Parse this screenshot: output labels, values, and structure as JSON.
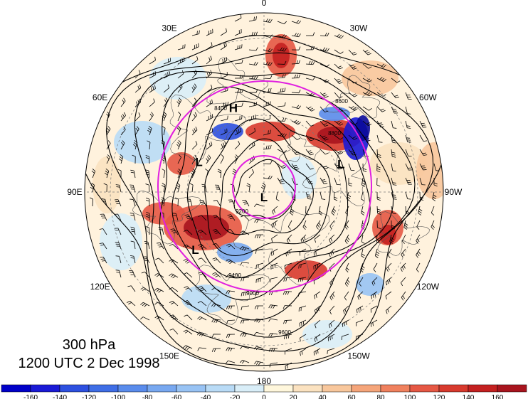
{
  "map": {
    "level_label": "300 hPa",
    "time_label": "1200 UTC 2 Dec 1998",
    "longitude_labels": [
      {
        "text": "0",
        "lon": 0
      },
      {
        "text": "30W",
        "lon": -30
      },
      {
        "text": "60W",
        "lon": -60
      },
      {
        "text": "90W",
        "lon": -90
      },
      {
        "text": "120W",
        "lon": -120
      },
      {
        "text": "150W",
        "lon": -150
      },
      {
        "text": "180",
        "lon": 180
      },
      {
        "text": "150E",
        "lon": 150
      },
      {
        "text": "120E",
        "lon": 120
      },
      {
        "text": "90E",
        "lon": 90
      },
      {
        "text": "60E",
        "lon": 60
      },
      {
        "text": "30E",
        "lon": 30
      }
    ],
    "pressure_systems": [
      {
        "label": "L",
        "lat": 88,
        "lon": 180
      },
      {
        "label": "H",
        "lat": 55,
        "lon": 20
      },
      {
        "label": "L",
        "lat": 62,
        "lon": 65
      },
      {
        "label": "L",
        "lat": 58,
        "lon": -70
      },
      {
        "label": "L",
        "lat": 55,
        "lon": 130
      }
    ],
    "contour_labels": [
      "9600",
      "9400",
      "9200",
      "9000",
      "8800",
      "8600",
      "8400"
    ],
    "colorbar": {
      "ticks": [
        "-160",
        "-140",
        "-120",
        "-100",
        "-80",
        "-60",
        "-40",
        "-20",
        "0",
        "20",
        "40",
        "60",
        "80",
        "100",
        "120",
        "140",
        "160"
      ],
      "colors": [
        "#1a1ad6",
        "#2d50e0",
        "#3f6ee6",
        "#5a8cec",
        "#78a8f0",
        "#98c3f4",
        "#b9dbf6",
        "#d9eef8",
        "#fff7dc",
        "#fbe2c0",
        "#f8c79c",
        "#f5a57a",
        "#f0815e",
        "#e65844",
        "#d83a2e",
        "#c42020",
        "#a8141e"
      ]
    }
  }
}
